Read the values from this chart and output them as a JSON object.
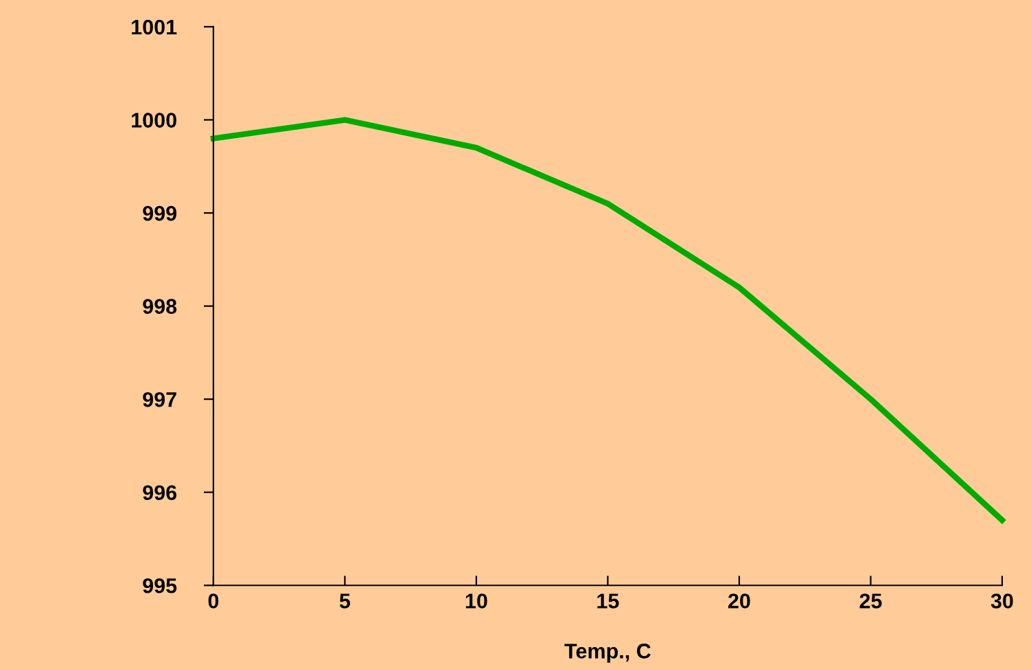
{
  "chart_data": {
    "type": "line",
    "xlabel": "Temp., C",
    "x": [
      0,
      5,
      10,
      15,
      20,
      25,
      30
    ],
    "series": [
      {
        "color": "#00aa00",
        "values": [
          999.8,
          1000.0,
          999.7,
          999.1,
          998.2,
          997.0,
          995.7
        ]
      }
    ],
    "xlim": [
      0,
      30
    ],
    "xticks": [
      0,
      5,
      10,
      15,
      20,
      25,
      30
    ],
    "ylim": [
      995,
      1001
    ],
    "yticks": [
      995,
      996,
      997,
      998,
      999,
      1000,
      1001
    ],
    "grid": false,
    "marker": "none",
    "line_style": "solid"
  }
}
